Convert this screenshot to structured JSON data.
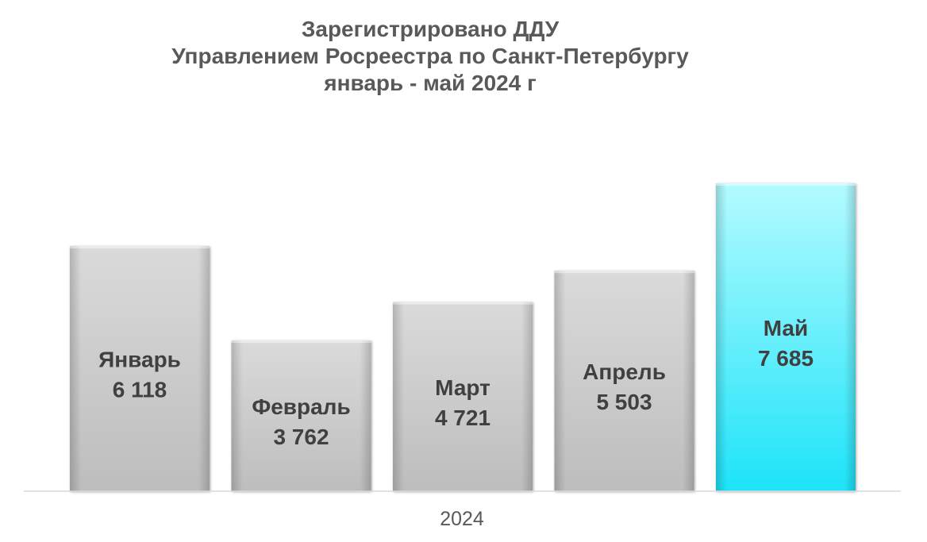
{
  "chart_data": {
    "type": "bar",
    "title_lines": [
      "Зарегистрировано ДДУ",
      "Управлением Росреестра по Санкт-Петербургу",
      "январь - май 2024 г"
    ],
    "x_category": "2024",
    "categories": [
      "Январь",
      "Февраль",
      "Март",
      "Апрель",
      "Май"
    ],
    "values": [
      6118,
      3762,
      4721,
      5503,
      7685
    ],
    "value_labels": [
      "6 118",
      "3 762",
      "4 721",
      "5 503",
      "7 685"
    ],
    "highlight_index": 4,
    "colors": {
      "bar_default_top": "#dadada",
      "bar_default_bottom": "#bdbdbd",
      "bar_highlight_top": "#b3fbff",
      "bar_highlight_bottom": "#1ee3f9",
      "label_text": "#404040",
      "axis_line": "#d9d9d9"
    },
    "grid": false,
    "legend": "none"
  }
}
